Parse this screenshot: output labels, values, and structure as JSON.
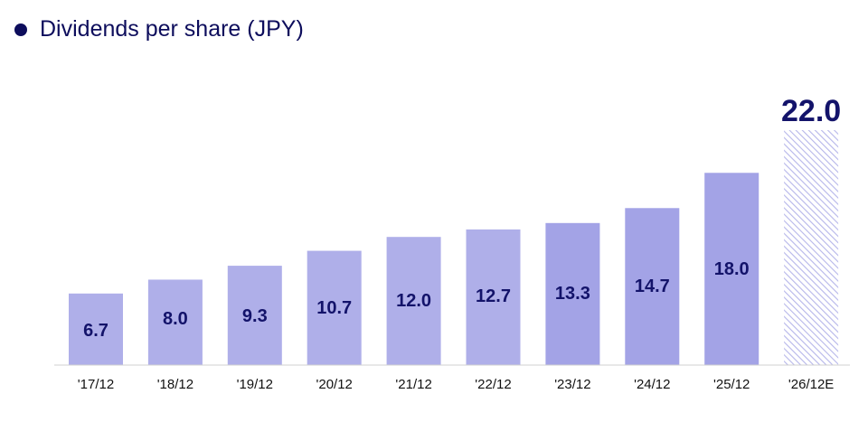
{
  "chart_data": {
    "type": "bar",
    "title": "Dividends per share (JPY)",
    "categories": [
      "'17/12",
      "'18/12",
      "'19/12",
      "'20/12",
      "'21/12",
      "'22/12",
      "'23/12",
      "'24/12",
      "'25/12",
      "'26/12E"
    ],
    "values": [
      6.7,
      8.0,
      9.3,
      10.7,
      12.0,
      12.7,
      13.3,
      14.7,
      18.0,
      22.0
    ],
    "labels": [
      "6.7",
      "8.0",
      "9.3",
      "10.7",
      "12.0",
      "12.7",
      "13.3",
      "14.7",
      "18.0",
      "22.0"
    ],
    "estimate_last": true,
    "ylim": [
      0,
      22.0
    ],
    "grid": false,
    "legend": "top-left",
    "colors": {
      "bar_light": "#afafe9",
      "bar_dark": "#a3a3e6",
      "estimate_hatch": "#b6b6ea",
      "text": "#13136a",
      "legend_dot": "#0d0d5c"
    }
  }
}
